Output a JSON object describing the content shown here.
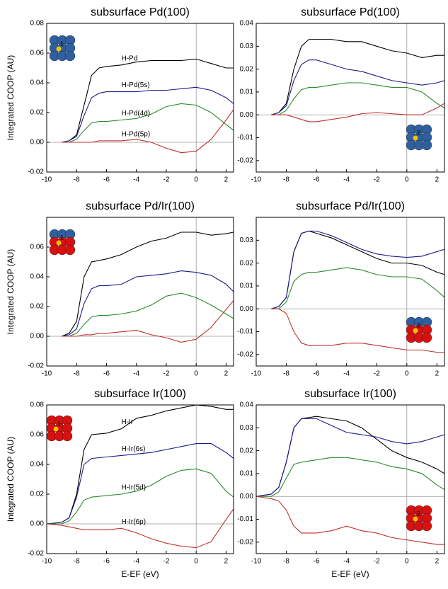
{
  "chart_data": [
    {
      "type": "line",
      "title": "subsurface Pd(100)",
      "ylabel": "Integrated COOP (AU)",
      "inset_label": "1",
      "inset_colors": [
        "#2f5f9e"
      ],
      "x": [
        -9,
        -8.5,
        -8,
        -7.5,
        -7,
        -6.5,
        -6,
        -5,
        -4,
        -3,
        -2,
        -1,
        0,
        1,
        2,
        2.5
      ],
      "xlim": [
        -10,
        2.5
      ],
      "xticks": [
        -10,
        -8,
        -6,
        -4,
        -2,
        0,
        2
      ],
      "ylim": [
        -0.02,
        0.08
      ],
      "yticks": [
        -0.02,
        {
          "value": 0,
          "label": "0.00"
        },
        0.02,
        0.04,
        0.06,
        0.08
      ],
      "series": [
        {
          "name": "H-Pd",
          "color": "#000000",
          "values": [
            0,
            0.001,
            0.005,
            0.025,
            0.045,
            0.05,
            0.051,
            0.052,
            0.054,
            0.055,
            0.055,
            0.055,
            0.056,
            0.053,
            0.05,
            0.05
          ]
        },
        {
          "name": "H-Pd(5s)",
          "color": "#1a1a8c",
          "values": [
            0,
            0.001,
            0.004,
            0.018,
            0.03,
            0.033,
            0.034,
            0.034,
            0.034,
            0.035,
            0.035,
            0.036,
            0.037,
            0.035,
            0.03,
            0.026
          ]
        },
        {
          "name": "H-Pd(4d)",
          "color": "#2a8a2a",
          "values": [
            0,
            0,
            0.002,
            0.008,
            0.013,
            0.014,
            0.014,
            0.015,
            0.016,
            0.019,
            0.024,
            0.026,
            0.025,
            0.02,
            0.012,
            0.008
          ]
        },
        {
          "name": "H-Pd(5p)",
          "color": "#c0302a",
          "values": [
            0,
            0,
            0,
            0,
            0,
            0.001,
            0.001,
            0.001,
            0.002,
            0,
            -0.004,
            -0.007,
            -0.006,
            0.002,
            0.015,
            0.022
          ]
        }
      ]
    },
    {
      "type": "line",
      "title": "subsurface Pd(100)",
      "inset_label": "2",
      "inset_colors": [
        "#2f5f9e"
      ],
      "x": [
        -9,
        -8.5,
        -8,
        -7.5,
        -7,
        -6.5,
        -6,
        -5,
        -4,
        -3,
        -2,
        -1,
        0,
        1,
        2,
        2.5
      ],
      "xlim": [
        -10,
        2.5
      ],
      "xticks": [
        -10,
        -8,
        -6,
        -4,
        -2,
        0,
        2
      ],
      "ylim": [
        -0.025,
        0.04
      ],
      "yticks": [
        -0.02,
        -0.01,
        {
          "value": 0,
          "label": "0.00"
        },
        0.01,
        0.02,
        0.03,
        0.04
      ],
      "series": [
        {
          "color": "#000000",
          "values": [
            0,
            0.001,
            0.005,
            0.02,
            0.03,
            0.033,
            0.033,
            0.033,
            0.032,
            0.032,
            0.03,
            0.028,
            0.027,
            0.025,
            0.026,
            0.026
          ]
        },
        {
          "color": "#1a1a8c",
          "values": [
            0,
            0.001,
            0.004,
            0.015,
            0.022,
            0.024,
            0.024,
            0.022,
            0.02,
            0.019,
            0.017,
            0.015,
            0.014,
            0.013,
            0.014,
            0.015
          ]
        },
        {
          "color": "#2a8a2a",
          "values": [
            0,
            0,
            0.002,
            0.007,
            0.011,
            0.012,
            0.012,
            0.013,
            0.014,
            0.014,
            0.013,
            0.012,
            0.012,
            0.01,
            0.005,
            0.003
          ]
        },
        {
          "color": "#c0302a",
          "values": [
            0,
            0,
            0,
            -0.001,
            -0.002,
            -0.003,
            -0.003,
            -0.002,
            -0.001,
            0.0005,
            0.001,
            0.0005,
            0,
            0,
            0.003,
            0.005
          ]
        }
      ]
    },
    {
      "type": "line",
      "title": "subsurface Pd/Ir(100)",
      "ylabel": "Integrated COOP (AU)",
      "inset_label": "1",
      "inset_colors": [
        "#2f5f9e",
        "#d81010"
      ],
      "x": [
        -9,
        -8.5,
        -8,
        -7.5,
        -7,
        -6.5,
        -6,
        -5,
        -4,
        -3,
        -2,
        -1,
        0,
        1,
        2,
        2.5
      ],
      "xlim": [
        -10,
        2.5
      ],
      "xticks": [
        -10,
        -8,
        -6,
        -4,
        -2,
        0,
        2
      ],
      "ylim": [
        -0.02,
        0.08
      ],
      "yticks": [
        -0.02,
        {
          "value": 0,
          "label": "0.00"
        },
        0.02,
        0.04,
        0.06
      ],
      "series": [
        {
          "color": "#000000",
          "values": [
            0,
            0.002,
            0.01,
            0.04,
            0.05,
            0.051,
            0.052,
            0.055,
            0.06,
            0.064,
            0.066,
            0.07,
            0.07,
            0.068,
            0.069,
            0.07
          ]
        },
        {
          "color": "#1a1a8c",
          "values": [
            0,
            0.001,
            0.005,
            0.022,
            0.032,
            0.034,
            0.034,
            0.035,
            0.04,
            0.041,
            0.042,
            0.044,
            0.043,
            0.041,
            0.035,
            0.03
          ]
        },
        {
          "color": "#2a8a2a",
          "values": [
            0,
            0,
            0.002,
            0.008,
            0.013,
            0.014,
            0.014,
            0.015,
            0.017,
            0.021,
            0.027,
            0.029,
            0.026,
            0.021,
            0.015,
            0.012
          ]
        },
        {
          "color": "#c0302a",
          "values": [
            0,
            0,
            0,
            0.001,
            0.001,
            0.002,
            0.002,
            0.003,
            0.004,
            0.001,
            -0.001,
            -0.004,
            -0.002,
            0.006,
            0.018,
            0.024
          ]
        }
      ]
    },
    {
      "type": "line",
      "title": "subsurface Pd/Ir(100)",
      "inset_label": "2",
      "inset_colors": [
        "#2f5f9e",
        "#d81010"
      ],
      "x": [
        -9,
        -8.5,
        -8,
        -7.5,
        -7,
        -6.5,
        -6,
        -5,
        -4,
        -3,
        -2,
        -1,
        0,
        1,
        2,
        2.5
      ],
      "xlim": [
        -10,
        2.5
      ],
      "xticks": [
        -10,
        -8,
        -6,
        -4,
        -2,
        0,
        2
      ],
      "ylim": [
        -0.025,
        0.04
      ],
      "yticks": [
        -0.02,
        -0.01,
        {
          "value": 0,
          "label": "0.00"
        },
        0.01,
        0.02,
        0.03
      ],
      "series": [
        {
          "color": "#000000",
          "values": [
            0,
            0.001,
            0.005,
            0.025,
            0.033,
            0.034,
            0.033,
            0.031,
            0.028,
            0.025,
            0.022,
            0.02,
            0.02,
            0.019,
            0.016,
            0.015
          ]
        },
        {
          "color": "#1a1a8c",
          "values": [
            0,
            0.001,
            0.005,
            0.025,
            0.033,
            0.034,
            0.034,
            0.032,
            0.029,
            0.026,
            0.024,
            0.023,
            0.0225,
            0.023,
            0.025,
            0.026
          ]
        },
        {
          "color": "#2a8a2a",
          "values": [
            0,
            0,
            0.003,
            0.012,
            0.015,
            0.016,
            0.016,
            0.017,
            0.018,
            0.017,
            0.015,
            0.014,
            0.014,
            0.013,
            0.008,
            0.005
          ]
        },
        {
          "color": "#c0302a",
          "values": [
            0,
            0,
            -0.002,
            -0.01,
            -0.015,
            -0.016,
            -0.016,
            -0.016,
            -0.015,
            -0.015,
            -0.016,
            -0.017,
            -0.018,
            -0.018,
            -0.019,
            -0.019
          ]
        }
      ]
    },
    {
      "type": "line",
      "title": "subsurface Ir(100)",
      "ylabel": "Integrated COOP (AU)",
      "xlabel": "E-EF (eV)",
      "inset_label": "1",
      "inset_colors": [
        "#d81010"
      ],
      "x": [
        -10,
        -9,
        -8.5,
        -8,
        -7.5,
        -7,
        -6,
        -5,
        -4,
        -3,
        -2,
        -1,
        0,
        1,
        2,
        2.5
      ],
      "xlim": [
        -10,
        2.5
      ],
      "xticks": [
        -10,
        -8,
        -6,
        -4,
        -2,
        0,
        2
      ],
      "ylim": [
        -0.02,
        0.08
      ],
      "yticks": [
        -0.02,
        {
          "value": 0,
          "label": "0.00"
        },
        0.02,
        0.04,
        0.06,
        0.08
      ],
      "series": [
        {
          "name": "H-Ir",
          "color": "#000000",
          "values": [
            0,
            0.001,
            0.004,
            0.02,
            0.05,
            0.06,
            0.061,
            0.064,
            0.071,
            0.073,
            0.076,
            0.078,
            0.08,
            0.079,
            0.077,
            0.077
          ]
        },
        {
          "name": "H-Ir(6s)",
          "color": "#1a1a8c",
          "values": [
            0,
            0.001,
            0.004,
            0.018,
            0.04,
            0.044,
            0.045,
            0.046,
            0.047,
            0.048,
            0.05,
            0.052,
            0.054,
            0.054,
            0.048,
            0.044
          ]
        },
        {
          "name": "H-Ir(5d)",
          "color": "#2a8a2a",
          "values": [
            0,
            0,
            0.002,
            0.008,
            0.016,
            0.018,
            0.019,
            0.02,
            0.022,
            0.026,
            0.032,
            0.036,
            0.037,
            0.034,
            0.022,
            0.018
          ]
        },
        {
          "name": "H-Ir(6p)",
          "color": "#c0302a",
          "values": [
            0,
            -0.001,
            -0.002,
            -0.003,
            -0.004,
            -0.004,
            -0.004,
            -0.003,
            -0.006,
            -0.01,
            -0.013,
            -0.015,
            -0.016,
            -0.012,
            0.003,
            0.01
          ]
        }
      ]
    },
    {
      "type": "line",
      "title": "subsurface Ir(100)",
      "xlabel": "E-EF (eV)",
      "inset_label": "2",
      "inset_colors": [
        "#d81010"
      ],
      "x": [
        -10,
        -9,
        -8.5,
        -8,
        -7.5,
        -7,
        -6,
        -5,
        -4,
        -3,
        -2,
        -1,
        0,
        1,
        2,
        2.5
      ],
      "xlim": [
        -10,
        2.5
      ],
      "xticks": [
        -10,
        -8,
        -6,
        -4,
        -2,
        0,
        2
      ],
      "ylim": [
        -0.025,
        0.04
      ],
      "yticks": [
        -0.02,
        -0.01,
        {
          "value": 0,
          "label": "0.00"
        },
        0.01,
        0.02,
        0.03,
        0.04
      ],
      "series": [
        {
          "color": "#000000",
          "values": [
            0,
            0.001,
            0.004,
            0.015,
            0.03,
            0.034,
            0.035,
            0.034,
            0.033,
            0.03,
            0.025,
            0.02,
            0.017,
            0.015,
            0.012,
            0.01
          ]
        },
        {
          "color": "#1a1a8c",
          "values": [
            0,
            0.001,
            0.004,
            0.015,
            0.03,
            0.034,
            0.034,
            0.031,
            0.028,
            0.027,
            0.026,
            0.024,
            0.023,
            0.024,
            0.026,
            0.027
          ]
        },
        {
          "color": "#2a8a2a",
          "values": [
            0,
            0,
            0.002,
            0.008,
            0.014,
            0.015,
            0.016,
            0.017,
            0.017,
            0.016,
            0.015,
            0.013,
            0.012,
            0.01,
            0.005,
            0.003
          ]
        },
        {
          "color": "#c0302a",
          "values": [
            0,
            -0.001,
            -0.002,
            -0.006,
            -0.013,
            -0.016,
            -0.016,
            -0.015,
            -0.013,
            -0.015,
            -0.016,
            -0.018,
            -0.019,
            -0.02,
            -0.021,
            -0.021
          ]
        }
      ]
    }
  ]
}
